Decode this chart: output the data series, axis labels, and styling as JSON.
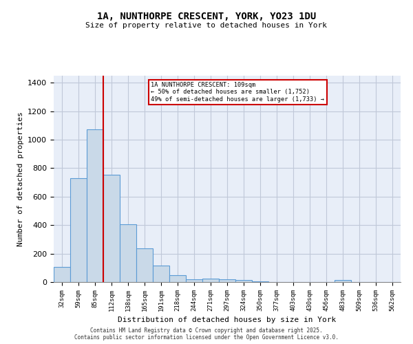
{
  "title_line1": "1A, NUNTHORPE CRESCENT, YORK, YO23 1DU",
  "title_line2": "Size of property relative to detached houses in York",
  "xlabel": "Distribution of detached houses by size in York",
  "ylabel": "Number of detached properties",
  "categories": [
    "32sqm",
    "59sqm",
    "85sqm",
    "112sqm",
    "138sqm",
    "165sqm",
    "191sqm",
    "218sqm",
    "244sqm",
    "271sqm",
    "297sqm",
    "324sqm",
    "350sqm",
    "377sqm",
    "403sqm",
    "430sqm",
    "456sqm",
    "483sqm",
    "509sqm",
    "536sqm",
    "562sqm"
  ],
  "values": [
    107,
    730,
    1075,
    752,
    405,
    237,
    118,
    47,
    20,
    25,
    18,
    15,
    5,
    0,
    0,
    0,
    0,
    13,
    0,
    0,
    0
  ],
  "bar_color": "#c9d9e8",
  "bar_edge_color": "#5b9bd5",
  "grid_color": "#c0c8d8",
  "background_color": "#e8eef8",
  "red_line_x": 2.5,
  "annotation_title": "1A NUNTHORPE CRESCENT: 109sqm",
  "annotation_line1": "← 50% of detached houses are smaller (1,752)",
  "annotation_line2": "49% of semi-detached houses are larger (1,733) →",
  "annotation_box_color": "#ffffff",
  "annotation_box_edge": "#cc0000",
  "red_line_color": "#cc0000",
  "ylim": [
    0,
    1450
  ],
  "yticks": [
    0,
    200,
    400,
    600,
    800,
    1000,
    1200,
    1400
  ],
  "footer_line1": "Contains HM Land Registry data © Crown copyright and database right 2025.",
  "footer_line2": "Contains public sector information licensed under the Open Government Licence v3.0."
}
